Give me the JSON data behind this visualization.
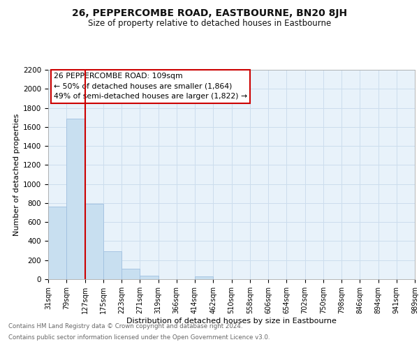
{
  "title": "26, PEPPERCOMBE ROAD, EASTBOURNE, BN20 8JH",
  "subtitle": "Size of property relative to detached houses in Eastbourne",
  "xlabel": "Distribution of detached houses by size in Eastbourne",
  "ylabel": "Number of detached properties",
  "bin_labels": [
    "31sqm",
    "79sqm",
    "127sqm",
    "175sqm",
    "223sqm",
    "271sqm",
    "319sqm",
    "366sqm",
    "414sqm",
    "462sqm",
    "510sqm",
    "558sqm",
    "606sqm",
    "654sqm",
    "702sqm",
    "750sqm",
    "798sqm",
    "846sqm",
    "894sqm",
    "941sqm",
    "989sqm"
  ],
  "bar_values": [
    760,
    1690,
    790,
    295,
    110,
    38,
    0,
    0,
    28,
    0,
    0,
    0,
    0,
    0,
    0,
    0,
    0,
    0,
    0,
    0
  ],
  "bar_color": "#c8dff0",
  "bar_edge_color": "#a0c0e0",
  "vline_color": "#cc0000",
  "annotation_box_text": "26 PEPPERCOMBE ROAD: 109sqm\n← 50% of detached houses are smaller (1,864)\n49% of semi-detached houses are larger (1,822) →",
  "ylim": [
    0,
    2200
  ],
  "yticks": [
    0,
    200,
    400,
    600,
    800,
    1000,
    1200,
    1400,
    1600,
    1800,
    2000,
    2200
  ],
  "grid_color": "#ccdded",
  "bg_color": "#e8f2fa",
  "footer_line1": "Contains HM Land Registry data © Crown copyright and database right 2024.",
  "footer_line2": "Contains public sector information licensed under the Open Government Licence v3.0."
}
